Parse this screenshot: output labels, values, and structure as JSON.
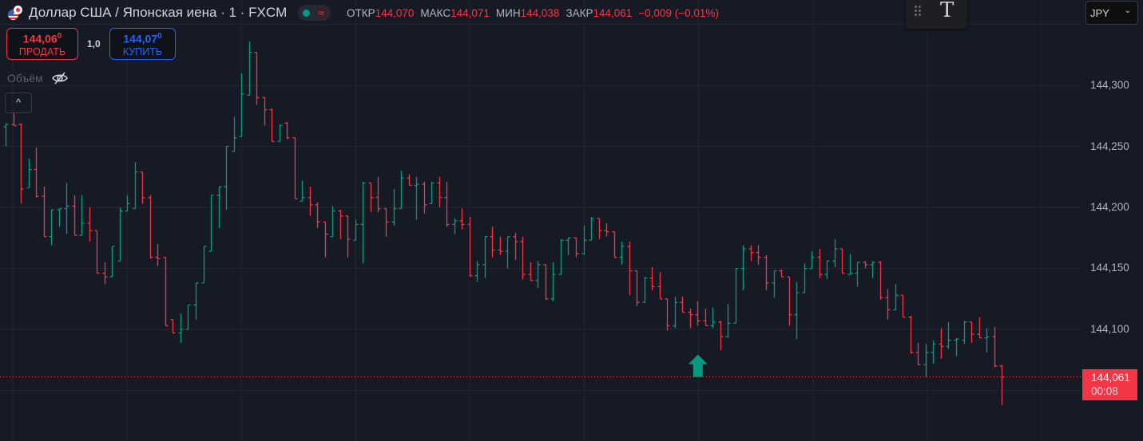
{
  "header": {
    "title": "Доллар США / Японская иена · 1 · FXCM",
    "market_status": "open",
    "ohlc": [
      {
        "label": "ОТКР",
        "value": "144,070"
      },
      {
        "label": "МАКС",
        "value": "144,071"
      },
      {
        "label": "МИН",
        "value": "144,038"
      },
      {
        "label": "ЗАКР",
        "value": "144,061"
      }
    ],
    "change": "−0,009 (−0,01%)"
  },
  "trade": {
    "sell_price": "144,06",
    "sell_price_sup": "0",
    "sell_label": "ПРОДАТЬ",
    "quantity": "1,0",
    "buy_price": "144,07",
    "buy_price_sup": "0",
    "buy_label": "КУПИТЬ"
  },
  "volume": {
    "label": "Объём",
    "icon": "eye-off-icon"
  },
  "toolbar": {
    "text_tool": "T",
    "currency": "JPY"
  },
  "colors": {
    "up": "#089981",
    "down": "#f23645",
    "background": "#161a25",
    "grid": "#232632"
  },
  "price_axis": {
    "ticks": [
      "144,300",
      "144,250",
      "144,200",
      "144,150",
      "144,100"
    ],
    "last_price": "144,061",
    "countdown": "00:08"
  },
  "chart_data": {
    "type": "ohlc",
    "timeframe": "1",
    "ylim": [
      144.021,
      144.35
    ],
    "yticks": [
      144.3,
      144.25,
      144.2,
      144.15,
      144.1
    ],
    "last_price": 144.061,
    "markers": [
      {
        "bar_index": 91,
        "type": "arrow-up"
      }
    ],
    "bars": [
      [
        144.266,
        144.269,
        144.25,
        144.268
      ],
      [
        144.268,
        144.278,
        144.267,
        144.267
      ],
      [
        144.268,
        144.269,
        144.203,
        144.215
      ],
      [
        144.216,
        144.24,
        144.216,
        144.231
      ],
      [
        144.231,
        144.249,
        144.208,
        144.209
      ],
      [
        144.209,
        144.217,
        144.176,
        144.176
      ],
      [
        144.176,
        144.198,
        144.169,
        144.198
      ],
      [
        144.198,
        144.199,
        144.184,
        144.199
      ],
      [
        144.199,
        144.22,
        144.178,
        144.201
      ],
      [
        144.201,
        144.21,
        144.177,
        144.177
      ],
      [
        144.177,
        144.21,
        144.177,
        144.187
      ],
      [
        144.187,
        144.2,
        144.172,
        144.181
      ],
      [
        144.181,
        144.181,
        144.146,
        144.146
      ],
      [
        144.146,
        144.155,
        144.137,
        144.143
      ],
      [
        144.143,
        144.168,
        144.143,
        144.168
      ],
      [
        144.156,
        144.2,
        144.156,
        144.197
      ],
      [
        144.197,
        144.21,
        144.197,
        144.203
      ],
      [
        144.199,
        144.237,
        144.199,
        144.229
      ],
      [
        144.229,
        144.229,
        144.203,
        144.208
      ],
      [
        144.208,
        144.21,
        144.158,
        144.159
      ],
      [
        144.159,
        144.17,
        144.152,
        144.158
      ],
      [
        144.159,
        144.159,
        144.103,
        144.103
      ],
      [
        144.108,
        144.108,
        144.097,
        144.097
      ],
      [
        144.097,
        144.113,
        144.089,
        144.1
      ],
      [
        144.1,
        144.12,
        144.1,
        144.12
      ],
      [
        144.12,
        144.138,
        144.108,
        144.138
      ],
      [
        144.138,
        144.168,
        144.138,
        144.168
      ],
      [
        144.164,
        144.21,
        144.164,
        144.21
      ],
      [
        144.21,
        144.217,
        144.183,
        144.217
      ],
      [
        144.217,
        144.25,
        144.198,
        144.25
      ],
      [
        144.246,
        144.274,
        144.246,
        144.257
      ],
      [
        144.258,
        144.31,
        144.258,
        144.293
      ],
      [
        144.292,
        144.336,
        144.292,
        144.327
      ],
      [
        144.327,
        144.327,
        144.284,
        144.29
      ],
      [
        144.29,
        144.29,
        144.267,
        144.28
      ],
      [
        144.28,
        144.281,
        144.254,
        144.254
      ],
      [
        144.254,
        144.268,
        144.254,
        144.267
      ],
      [
        144.269,
        144.27,
        144.256,
        144.257
      ],
      [
        144.257,
        144.257,
        144.207,
        144.207
      ],
      [
        144.205,
        144.222,
        144.205,
        144.208
      ],
      [
        144.208,
        144.217,
        144.193,
        144.202
      ],
      [
        144.202,
        144.204,
        144.183,
        144.188
      ],
      [
        144.188,
        144.188,
        144.159,
        144.178
      ],
      [
        144.176,
        144.201,
        144.176,
        144.197
      ],
      [
        144.197,
        144.198,
        144.174,
        144.193
      ],
      [
        144.193,
        144.193,
        144.159,
        144.174
      ],
      [
        144.173,
        144.19,
        144.173,
        144.186
      ],
      [
        144.186,
        144.221,
        144.154,
        144.22
      ],
      [
        144.22,
        144.22,
        144.196,
        144.208
      ],
      [
        144.208,
        144.225,
        144.196,
        144.199
      ],
      [
        144.199,
        144.199,
        144.176,
        144.188
      ],
      [
        144.188,
        144.215,
        144.185,
        144.199
      ],
      [
        144.199,
        144.23,
        144.199,
        144.224
      ],
      [
        144.224,
        144.227,
        144.218,
        144.218
      ],
      [
        144.218,
        144.225,
        144.19,
        144.219
      ],
      [
        144.219,
        144.221,
        144.195,
        144.202
      ],
      [
        144.203,
        144.221,
        144.203,
        144.22
      ],
      [
        144.22,
        144.225,
        144.2,
        144.208
      ],
      [
        144.208,
        144.221,
        144.184,
        144.186
      ],
      [
        144.186,
        144.191,
        144.178,
        144.189
      ],
      [
        144.189,
        144.199,
        144.182,
        144.186
      ],
      [
        144.186,
        144.192,
        144.143,
        144.144
      ],
      [
        144.144,
        144.156,
        144.139,
        144.153
      ],
      [
        144.153,
        144.176,
        144.142,
        144.176
      ],
      [
        144.176,
        144.184,
        144.159,
        144.165
      ],
      [
        144.165,
        144.176,
        144.161,
        144.164
      ],
      [
        144.164,
        144.176,
        144.15,
        144.176
      ],
      [
        144.176,
        144.179,
        144.157,
        144.172
      ],
      [
        144.172,
        144.176,
        144.141,
        144.145
      ],
      [
        144.145,
        144.155,
        144.14,
        144.14
      ],
      [
        144.14,
        144.156,
        144.134,
        144.153
      ],
      [
        144.153,
        144.153,
        144.124,
        144.125
      ],
      [
        144.125,
        144.155,
        144.123,
        144.145
      ],
      [
        144.145,
        144.174,
        144.145,
        144.173
      ],
      [
        144.173,
        144.175,
        144.161,
        144.175
      ],
      [
        144.175,
        144.175,
        144.159,
        144.162
      ],
      [
        144.162,
        144.185,
        144.161,
        144.173
      ],
      [
        144.173,
        144.192,
        144.173,
        144.191
      ],
      [
        144.191,
        144.191,
        144.174,
        144.181
      ],
      [
        144.181,
        144.187,
        144.176,
        144.18
      ],
      [
        144.18,
        144.18,
        144.159,
        144.159
      ],
      [
        144.159,
        144.172,
        144.153,
        144.168
      ],
      [
        144.168,
        144.172,
        144.128,
        144.148
      ],
      [
        144.148,
        144.148,
        144.119,
        144.122
      ],
      [
        144.122,
        144.143,
        144.122,
        144.142
      ],
      [
        144.142,
        144.151,
        144.132,
        144.135
      ],
      [
        144.135,
        144.147,
        144.125,
        144.125
      ],
      [
        144.125,
        144.125,
        144.099,
        144.103
      ],
      [
        144.103,
        144.127,
        144.101,
        144.122
      ],
      [
        144.122,
        144.127,
        144.114,
        144.114
      ],
      [
        144.114,
        144.117,
        144.101,
        144.112
      ],
      [
        144.112,
        144.123,
        144.103,
        144.107
      ],
      [
        144.107,
        144.117,
        144.103,
        144.103
      ],
      [
        144.103,
        144.118,
        144.101,
        144.106
      ],
      [
        144.106,
        144.107,
        144.083,
        144.094
      ],
      [
        144.094,
        144.121,
        144.093,
        144.105
      ],
      [
        144.105,
        144.15,
        144.105,
        144.15
      ],
      [
        144.15,
        144.169,
        144.132,
        144.166
      ],
      [
        144.166,
        144.169,
        144.156,
        144.163
      ],
      [
        144.163,
        144.169,
        144.153,
        144.159
      ],
      [
        144.159,
        144.161,
        144.132,
        144.138
      ],
      [
        144.138,
        144.148,
        144.126,
        144.148
      ],
      [
        144.148,
        144.149,
        144.143,
        144.143
      ],
      [
        144.143,
        144.143,
        144.103,
        144.112
      ],
      [
        144.112,
        144.139,
        144.092,
        144.13
      ],
      [
        144.13,
        144.154,
        144.13,
        144.15
      ],
      [
        144.15,
        144.164,
        144.15,
        144.159
      ],
      [
        144.159,
        144.166,
        144.142,
        144.145
      ],
      [
        144.145,
        144.156,
        144.141,
        144.156
      ],
      [
        144.156,
        144.174,
        144.151,
        144.166
      ],
      [
        144.166,
        144.166,
        144.146,
        144.146
      ],
      [
        144.145,
        144.162,
        144.145,
        144.146
      ],
      [
        144.146,
        144.155,
        144.135,
        144.155
      ],
      [
        144.155,
        144.156,
        144.15,
        144.153
      ],
      [
        144.153,
        144.156,
        144.142,
        144.155
      ],
      [
        144.155,
        144.156,
        144.124,
        144.126
      ],
      [
        144.126,
        144.133,
        144.108,
        144.116
      ],
      [
        144.116,
        144.137,
        144.116,
        144.128
      ],
      [
        144.128,
        144.128,
        144.11,
        144.11
      ],
      [
        144.11,
        144.111,
        144.08,
        144.081
      ],
      [
        144.081,
        144.089,
        144.071,
        144.071
      ],
      [
        144.071,
        144.088,
        144.061,
        144.081
      ],
      [
        144.081,
        144.091,
        144.072,
        144.088
      ],
      [
        144.088,
        144.101,
        144.076,
        144.086
      ],
      [
        144.086,
        144.106,
        144.084,
        144.091
      ],
      [
        144.091,
        144.093,
        144.078,
        144.092
      ],
      [
        144.091,
        144.107,
        144.088,
        144.106
      ],
      [
        144.106,
        144.106,
        144.089,
        144.096
      ],
      [
        144.096,
        144.11,
        144.093,
        144.093
      ],
      [
        144.093,
        144.101,
        144.081,
        144.094
      ],
      [
        144.094,
        144.102,
        144.069,
        144.07
      ],
      [
        144.07,
        144.071,
        144.038,
        144.061
      ]
    ]
  }
}
